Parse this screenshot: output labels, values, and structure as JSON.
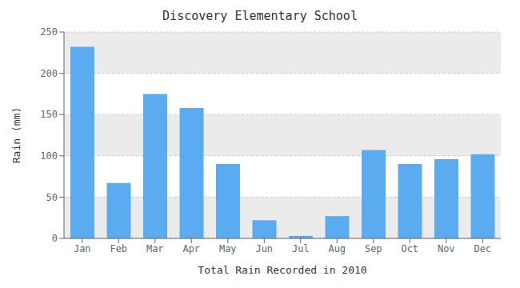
{
  "chart_data": {
    "type": "bar",
    "title": "Discovery Elementary School",
    "xlabel": "Total Rain Recorded in 2010",
    "ylabel": "Rain (mm)",
    "categories": [
      "Jan",
      "Feb",
      "Mar",
      "Apr",
      "May",
      "Jun",
      "Jul",
      "Aug",
      "Sep",
      "Oct",
      "Nov",
      "Dec"
    ],
    "values": [
      232,
      67,
      175,
      158,
      90,
      22,
      3,
      27,
      107,
      90,
      96,
      102
    ],
    "color": "#5aabf0",
    "ylim": [
      0,
      250
    ],
    "yticks": [
      0,
      50,
      100,
      150,
      200,
      250
    ],
    "grid": true
  }
}
